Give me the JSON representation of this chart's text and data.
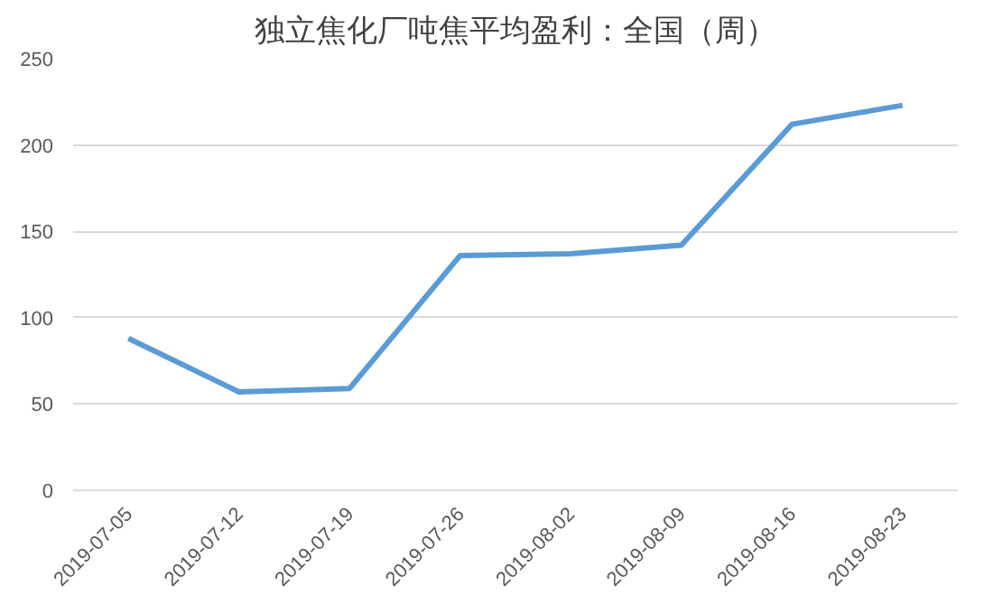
{
  "chart_data": {
    "type": "line",
    "title": "独立焦化厂吨焦平均盈利：全国（周）",
    "categories": [
      "2019-07-05",
      "2019-07-12",
      "2019-07-19",
      "2019-07-26",
      "2019-08-02",
      "2019-08-09",
      "2019-08-16",
      "2019-08-23"
    ],
    "series": [
      {
        "color": "#5b9bd5",
        "values": [
          88,
          57,
          59,
          136,
          137,
          142,
          212,
          223
        ]
      }
    ],
    "ylim": [
      0,
      250
    ],
    "yticks": [
      0,
      50,
      100,
      150,
      200,
      250
    ],
    "grid": "y",
    "marker": "none",
    "line_style": "solid"
  }
}
